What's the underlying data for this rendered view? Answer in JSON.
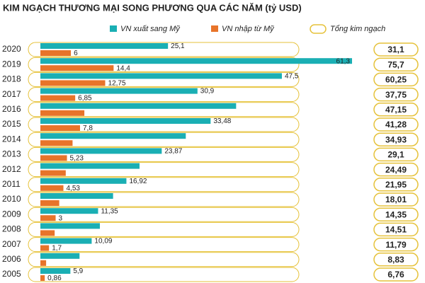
{
  "chart_data": {
    "type": "bar",
    "orientation": "horizontal",
    "title": "KIM NGẠCH THƯƠNG MẠI SONG PHƯƠNG QUA CÁC NĂM (tỷ USD)",
    "categories": [
      "2020",
      "2019",
      "2018",
      "2017",
      "2016",
      "2015",
      "2014",
      "2013",
      "2012",
      "2011",
      "2010",
      "2009",
      "2008",
      "2007",
      "2006",
      "2005"
    ],
    "series": [
      {
        "name": "VN xuất sang Mỹ",
        "color": "#1aafb4",
        "values": [
          25.1,
          61.3,
          47.5,
          30.9,
          38.5,
          33.48,
          28.6,
          23.87,
          19.5,
          16.92,
          14.3,
          11.35,
          11.7,
          10.09,
          7.7,
          5.9
        ],
        "value_labels": [
          "25,1",
          "61,3",
          "47,5",
          "30,9",
          null,
          "33,48",
          null,
          "23,87",
          null,
          "16,92",
          null,
          "11,35",
          null,
          "10,09",
          null,
          "5,9"
        ]
      },
      {
        "name": "VN nhập từ Mỹ",
        "color": "#e8742a",
        "values": [
          6,
          14.4,
          12.75,
          6.85,
          8.65,
          7.8,
          6.33,
          5.23,
          4.99,
          4.53,
          3.71,
          3,
          2.81,
          1.7,
          1.13,
          0.86
        ],
        "value_labels": [
          "6",
          "14,4",
          "12,75",
          "6,85",
          null,
          "7,8",
          null,
          "5,23",
          null,
          "4,53",
          null,
          "3",
          null,
          "1,7",
          null,
          "0,86"
        ]
      },
      {
        "name": "Tổng kim ngạch",
        "color": "#e6c23a",
        "values": [
          31.1,
          75.7,
          60.25,
          37.75,
          47.15,
          41.28,
          34.93,
          29.1,
          24.49,
          21.95,
          18.01,
          14.35,
          14.51,
          11.79,
          8.83,
          6.76
        ],
        "value_labels": [
          "31,1",
          "75,7",
          "60,25",
          "37,75",
          "47,15",
          "41,28",
          "34,93",
          "29,1",
          "24,49",
          "21,95",
          "18,01",
          "14,35",
          "14,51",
          "11,79",
          "8,83",
          "6,76"
        ]
      }
    ]
  }
}
